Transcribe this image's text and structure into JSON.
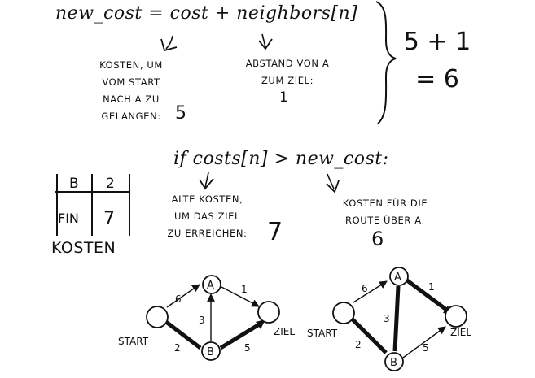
{
  "top": {
    "formula": "new_cost = cost + neighbors[n]",
    "cost_note": "KOSTEN, UM\nVOM START\nNACH A ZU\nGELANGEN:",
    "cost_value": "5",
    "neighbor_note": "ABSTAND VON A\nZUM ZIEL:",
    "neighbor_value": "1",
    "sum_line1": "5 + 1",
    "sum_line2": "= 6"
  },
  "middle": {
    "condition": "if costs[n] > new_cost:",
    "old_note": "ALTE KOSTEN,\nUM DAS ZIEL\nZU ERREICHEN:",
    "old_value": "7",
    "new_note": "KOSTEN FÜR DIE\nROUTE ÜBER A:",
    "new_value": "6"
  },
  "table": {
    "title": "KOSTEN",
    "rows": [
      {
        "node": "B",
        "cost": "2"
      },
      {
        "node": "FIN",
        "cost": "7"
      }
    ]
  },
  "graphs": {
    "node_start": "START",
    "node_a": "A",
    "node_b": "B",
    "node_goal": "ZIEL",
    "edges": [
      {
        "from": "START",
        "to": "A",
        "weight": "6"
      },
      {
        "from": "START",
        "to": "B",
        "weight": "2"
      },
      {
        "from": "B",
        "to": "A",
        "weight": "3"
      },
      {
        "from": "A",
        "to": "ZIEL",
        "weight": "1"
      },
      {
        "from": "B",
        "to": "ZIEL",
        "weight": "5"
      }
    ],
    "left_highlight": [
      "START-B",
      "B-ZIEL"
    ],
    "right_highlight": [
      "START-B",
      "B-A",
      "A-ZIEL"
    ]
  }
}
